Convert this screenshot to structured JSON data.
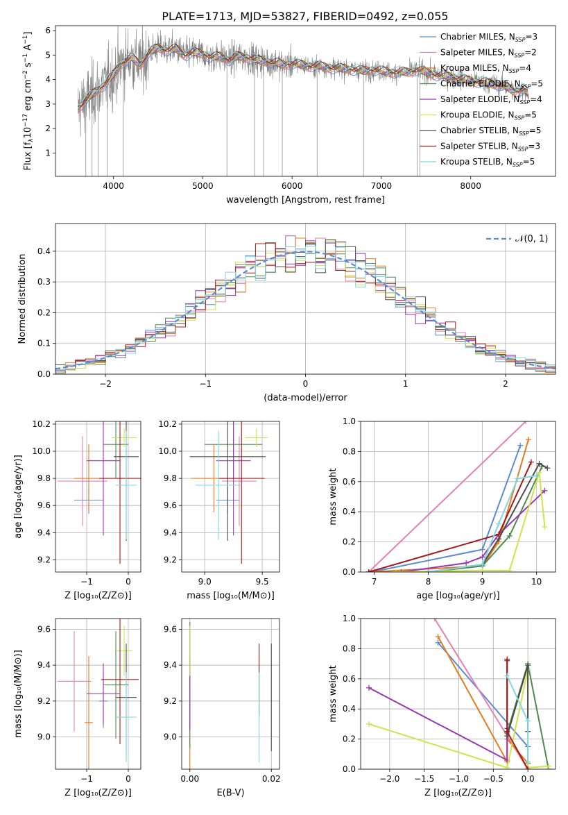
{
  "figure_title": "PLATE=1713, MJD=53827, FIBERID=0492, z=0.055",
  "colors": {
    "Chabrier MILES": "#5b8bd6",
    "Salpeter MILES": "#e57fb4",
    "Kroupa MILES": "#e57b1f",
    "Chabrier ELODIE": "#4e8a4c",
    "Salpeter ELODIE": "#9b35b5",
    "Kroupa ELODIE": "#cfe34a",
    "Chabrier STELIB": "#4a4a4a",
    "Salpeter STELIB": "#a31818",
    "Kroupa STELIB": "#7fd8de",
    "data": "#7f7f7f"
  },
  "chart_data": [
    {
      "id": "spectrum",
      "type": "line",
      "xlabel": "wavelength [Angstrom, rest frame]",
      "ylabel_prefix": "Flux [f",
      "ylabel_sub": "λ",
      "ylabel_mid": "10",
      "ylabel_exp1": "−17",
      "ylabel_mid2": " erg cm",
      "ylabel_exp2": "−2",
      "ylabel_mid3": " s",
      "ylabel_exp3": "−1",
      "ylabel_mid4": " A",
      "ylabel_exp4": "−1",
      "ylabel_end": "]",
      "xlim": [
        3350,
        8950
      ],
      "ylim": [
        0.05,
        6.2
      ],
      "xticks": [
        4000,
        5000,
        6000,
        7000,
        8000
      ],
      "yticks": [
        1,
        2,
        3,
        4,
        5,
        6
      ],
      "grid": false,
      "legend_position": "top-right",
      "continuum": [
        [
          3600,
          2.8
        ],
        [
          3700,
          3.2
        ],
        [
          3800,
          3.5
        ],
        [
          3900,
          3.8
        ],
        [
          4000,
          4.2
        ],
        [
          4100,
          4.7
        ],
        [
          4200,
          4.9
        ],
        [
          4300,
          4.6
        ],
        [
          4400,
          5.1
        ],
        [
          4500,
          5.3
        ],
        [
          4600,
          5.2
        ],
        [
          4700,
          5.25
        ],
        [
          4800,
          5.0
        ],
        [
          4900,
          5.1
        ],
        [
          5000,
          5.05
        ],
        [
          5100,
          4.9
        ],
        [
          5200,
          4.95
        ],
        [
          5300,
          4.8
        ],
        [
          5400,
          4.95
        ],
        [
          5500,
          4.9
        ],
        [
          5600,
          4.8
        ],
        [
          5700,
          4.75
        ],
        [
          5800,
          4.7
        ],
        [
          5900,
          4.6
        ],
        [
          6000,
          4.65
        ],
        [
          6100,
          4.6
        ],
        [
          6200,
          4.55
        ],
        [
          6300,
          4.55
        ],
        [
          6400,
          4.5
        ],
        [
          6500,
          4.45
        ],
        [
          6600,
          4.45
        ],
        [
          6700,
          4.4
        ],
        [
          6800,
          4.35
        ],
        [
          6900,
          4.4
        ],
        [
          7000,
          4.35
        ],
        [
          7100,
          4.3
        ],
        [
          7200,
          4.3
        ],
        [
          7300,
          4.3
        ],
        [
          7400,
          4.4
        ],
        [
          7500,
          4.3
        ],
        [
          7600,
          4.2
        ],
        [
          7700,
          4.15
        ],
        [
          7800,
          4.1
        ],
        [
          7900,
          4.0
        ],
        [
          8000,
          3.95
        ],
        [
          8100,
          3.9
        ],
        [
          8200,
          3.85
        ],
        [
          8300,
          3.8
        ],
        [
          8400,
          3.7
        ],
        [
          8500,
          3.5
        ],
        [
          8600,
          3.6
        ],
        [
          8650,
          3.4
        ]
      ],
      "legend": [
        {
          "model": "Chabrier MILES",
          "label": "Chabrier MILES, N",
          "sub": "SSP",
          "n": "=3"
        },
        {
          "model": "Salpeter MILES",
          "label": "Salpeter MILES, N",
          "sub": "SSP",
          "n": "=2"
        },
        {
          "model": "Kroupa MILES",
          "label": "Kroupa MILES, N",
          "sub": "SSP",
          "n": "=4"
        },
        {
          "model": "Chabrier ELODIE",
          "label": "Chabrier ELODIE, N",
          "sub": "SSP",
          "n": "=5"
        },
        {
          "model": "Salpeter ELODIE",
          "label": "Salpeter ELODIE, N",
          "sub": "SSP",
          "n": "=4"
        },
        {
          "model": "Kroupa ELODIE",
          "label": "Kroupa ELODIE, N",
          "sub": "SSP",
          "n": "=5"
        },
        {
          "model": "Chabrier STELIB",
          "label": "Chabrier STELIB, N",
          "sub": "SSP",
          "n": "=5"
        },
        {
          "model": "Salpeter STELIB",
          "label": "Salpeter STELIB, N",
          "sub": "SSP",
          "n": "=3"
        },
        {
          "model": "Kroupa STELIB",
          "label": "Kroupa STELIB, N",
          "sub": "SSP",
          "n": "=5"
        }
      ]
    },
    {
      "id": "residuals",
      "type": "line",
      "xlabel": "(data-model)/error",
      "ylabel": "Normed distribution",
      "xlim": [
        -2.5,
        2.5
      ],
      "ylim": [
        0,
        0.49
      ],
      "xticks": [
        -2,
        -1,
        0,
        1,
        2
      ],
      "yticks": [
        0.0,
        0.1,
        0.2,
        0.3,
        0.4
      ],
      "grid": true,
      "legend_position": "top-right",
      "legend": [
        {
          "label": "𝒩(0, 1)",
          "style": "dashed"
        }
      ],
      "bin_width": 0.1,
      "gaussian_color": "#5b8bd6"
    },
    {
      "id": "age-vs-Z",
      "type": "scatter",
      "xlabel": "Z [log₁₀(Z/Z⊙)]",
      "ylabel": "age  [log₁₀(age/yr)]",
      "xlim": [
        -1.75,
        0.3
      ],
      "ylim": [
        9.11,
        10.22
      ],
      "xticks": [
        -1,
        0
      ],
      "yticks": [
        9.2,
        9.4,
        9.6,
        9.8,
        10.0,
        10.2
      ],
      "grid": true,
      "points": [
        {
          "model": "Chabrier MILES",
          "x": -0.95,
          "xerr": 0.35,
          "y": 9.64,
          "yerr": 0.1
        },
        {
          "model": "Salpeter MILES",
          "x": -1.1,
          "xerr": 0.6,
          "y": 9.78,
          "yerr": 0.33
        },
        {
          "model": "Kroupa MILES",
          "x": -0.95,
          "xerr": 0.35,
          "y": 9.8,
          "yerr": 0.25
        },
        {
          "model": "Chabrier ELODIE",
          "x": -0.3,
          "xerr": 0.3,
          "y": 10.05,
          "yerr": 0.25
        },
        {
          "model": "Salpeter ELODIE",
          "x": -0.6,
          "xerr": 0.4,
          "y": 9.93,
          "yerr": 0.55
        },
        {
          "model": "Kroupa ELODIE",
          "x": -0.1,
          "xerr": 0.3,
          "y": 10.1,
          "yerr": 0.07
        },
        {
          "model": "Chabrier STELIB",
          "x": -0.05,
          "xerr": 0.3,
          "y": 9.96,
          "yerr": 0.62
        },
        {
          "model": "Salpeter STELIB",
          "x": -0.2,
          "xerr": 0.5,
          "y": 9.8,
          "yerr": 0.63
        },
        {
          "model": "Kroupa STELIB",
          "x": -0.05,
          "xerr": 0.25,
          "y": 9.75,
          "yerr": 0.4
        }
      ]
    },
    {
      "id": "age-vs-mass",
      "type": "scatter",
      "xlabel": "mass [log₁₀(M/M⊙)]",
      "xlim": [
        8.8,
        9.65
      ],
      "ylim": [
        9.11,
        10.22
      ],
      "xticks": [
        9.0,
        9.5
      ],
      "yticks": [
        9.2,
        9.4,
        9.6,
        9.8,
        10.0,
        10.2
      ],
      "grid": true,
      "points": [
        {
          "model": "Chabrier MILES",
          "x": 9.2,
          "xerr": 0.1,
          "y": 9.64,
          "yerr": 0.1
        },
        {
          "model": "Salpeter MILES",
          "x": 9.3,
          "xerr": 0.15,
          "y": 9.78,
          "yerr": 0.33
        },
        {
          "model": "Kroupa MILES",
          "x": 9.08,
          "xerr": 0.2,
          "y": 9.8,
          "yerr": 0.25
        },
        {
          "model": "Chabrier ELODIE",
          "x": 9.25,
          "xerr": 0.25,
          "y": 10.05,
          "yerr": 0.25
        },
        {
          "model": "Salpeter ELODIE",
          "x": 9.25,
          "xerr": 0.15,
          "y": 9.93,
          "yerr": 0.55
        },
        {
          "model": "Kroupa ELODIE",
          "x": 9.45,
          "xerr": 0.1,
          "y": 10.1,
          "yerr": 0.07
        },
        {
          "model": "Chabrier STELIB",
          "x": 9.2,
          "xerr": 0.33,
          "y": 9.96,
          "yerr": 0.62
        },
        {
          "model": "Salpeter STELIB",
          "x": 9.32,
          "xerr": 0.2,
          "y": 9.8,
          "yerr": 0.63
        },
        {
          "model": "Kroupa STELIB",
          "x": 9.12,
          "xerr": 0.2,
          "y": 9.75,
          "yerr": 0.4
        }
      ]
    },
    {
      "id": "mass-weight-vs-age",
      "type": "line",
      "xlabel": "age  [log₁₀(age/yr)]",
      "ylabel": "mass weight",
      "xlim": [
        6.75,
        10.35
      ],
      "ylim": [
        0,
        1.0
      ],
      "xticks": [
        7,
        8,
        9,
        10
      ],
      "yticks": [
        0.0,
        0.2,
        0.4,
        0.6,
        0.8,
        1.0
      ],
      "grid": true,
      "series": [
        {
          "model": "Chabrier MILES",
          "x": [
            6.95,
            9.0,
            9.7
          ],
          "y": [
            0.0,
            0.15,
            0.84
          ]
        },
        {
          "model": "Salpeter MILES",
          "x": [
            6.9,
            9.8
          ],
          "y": [
            0.0,
            1.0
          ]
        },
        {
          "model": "Kroupa MILES",
          "x": [
            6.9,
            9.0,
            9.3,
            9.85
          ],
          "y": [
            0.0,
            0.04,
            0.2,
            0.88
          ]
        },
        {
          "model": "Chabrier ELODIE",
          "x": [
            8.0,
            9.0,
            9.5,
            10.1
          ],
          "y": [
            0.0,
            0.04,
            0.24,
            0.7
          ]
        },
        {
          "model": "Salpeter ELODIE",
          "x": [
            7.5,
            8.7,
            9.0,
            9.3,
            10.15
          ],
          "y": [
            0.0,
            0.06,
            0.1,
            0.25,
            0.54
          ]
        },
        {
          "model": "Kroupa ELODIE",
          "x": [
            7.4,
            9.0,
            9.5,
            10.05,
            10.15
          ],
          "y": [
            0.0,
            0.01,
            0.01,
            0.66,
            0.3
          ]
        },
        {
          "model": "Chabrier STELIB",
          "x": [
            8.0,
            9.0,
            9.3,
            10.05,
            10.2
          ],
          "y": [
            0.0,
            0.05,
            0.22,
            0.72,
            0.69
          ]
        },
        {
          "model": "Salpeter STELIB",
          "x": [
            6.9,
            9.3,
            9.9
          ],
          "y": [
            0.0,
            0.25,
            0.73
          ]
        },
        {
          "model": "Kroupa STELIB",
          "x": [
            8.0,
            9.0,
            9.3,
            9.65,
            10.0
          ],
          "y": [
            0.0,
            0.05,
            0.32,
            0.62,
            0.64
          ]
        }
      ]
    },
    {
      "id": "mass-vs-Z",
      "type": "scatter",
      "xlabel": "Z [log₁₀(Z/Z⊙)]",
      "ylabel": "mass [log₁₀(M/M⊙)]",
      "xlim": [
        -1.75,
        0.3
      ],
      "ylim": [
        8.82,
        9.66
      ],
      "xticks": [
        -1,
        0
      ],
      "yticks": [
        9.0,
        9.2,
        9.4,
        9.6
      ],
      "grid": true,
      "points": [
        {
          "model": "Chabrier MILES",
          "x": -0.6,
          "xerr": 0.1,
          "y": 9.2,
          "yerr": 0.15
        },
        {
          "model": "Salpeter MILES",
          "x": -1.3,
          "xerr": 0.4,
          "y": 9.31,
          "yerr": 0.28
        },
        {
          "model": "Kroupa MILES",
          "x": -0.95,
          "xerr": 0.1,
          "y": 9.08,
          "yerr": 0.37
        },
        {
          "model": "Chabrier ELODIE",
          "x": -0.3,
          "xerr": 0.3,
          "y": 9.29,
          "yerr": 0.3
        },
        {
          "model": "Salpeter ELODIE",
          "x": -0.6,
          "xerr": 0.4,
          "y": 9.24,
          "yerr": 0.17
        },
        {
          "model": "Kroupa ELODIE",
          "x": -0.1,
          "xerr": 0.2,
          "y": 9.48,
          "yerr": 0.14
        },
        {
          "model": "Chabrier STELIB",
          "x": -0.05,
          "xerr": 0.25,
          "y": 9.22,
          "yerr": 0.3
        },
        {
          "model": "Salpeter STELIB",
          "x": -0.2,
          "xerr": 0.45,
          "y": 9.32,
          "yerr": 0.36
        },
        {
          "model": "Kroupa STELIB",
          "x": -0.05,
          "xerr": 0.25,
          "y": 9.11,
          "yerr": 0.25
        }
      ]
    },
    {
      "id": "mass-vs-EBV",
      "type": "scatter",
      "xlabel": "E(B-V)",
      "xlim": [
        -0.002,
        0.022
      ],
      "ylim": [
        8.82,
        9.66
      ],
      "xticks": [
        0.0,
        0.02
      ],
      "xticklabels": [
        "0.00",
        "0.02"
      ],
      "yticks": [
        9.0,
        9.2,
        9.4,
        9.6
      ],
      "grid": true,
      "points": [
        {
          "model": "Chabrier MILES",
          "x": 0.0,
          "xerr": 0,
          "y": 9.2,
          "yerr": 0.15
        },
        {
          "model": "Salpeter MILES",
          "x": 0.0,
          "xerr": 0,
          "y": 9.31,
          "yerr": 0.28
        },
        {
          "model": "Kroupa MILES",
          "x": 0.0,
          "xerr": 0,
          "y": 9.08,
          "yerr": 0.37
        },
        {
          "model": "Chabrier ELODIE",
          "x": 0.0,
          "xerr": 0,
          "y": 9.29,
          "yerr": 0.35
        },
        {
          "model": "Salpeter ELODIE",
          "x": 0.0,
          "xerr": 0,
          "y": 9.24,
          "yerr": 0.2
        },
        {
          "model": "Kroupa ELODIE",
          "x": 0.0,
          "xerr": 0,
          "y": 9.48,
          "yerr": 0.14
        },
        {
          "model": "Chabrier STELIB",
          "x": 0.02,
          "xerr": 0,
          "y": 9.22,
          "yerr": 0.3
        },
        {
          "model": "Salpeter STELIB",
          "x": 0.017,
          "xerr": 0,
          "y": 9.32,
          "yerr": 0.2
        },
        {
          "model": "Kroupa STELIB",
          "x": 0.017,
          "xerr": 0,
          "y": 9.11,
          "yerr": 0.25
        }
      ]
    },
    {
      "id": "mass-weight-vs-Z",
      "type": "line",
      "xlabel": "Z [log₁₀(Z/Z⊙)]",
      "ylabel": "mass weight",
      "xlim": [
        -2.42,
        0.4
      ],
      "ylim": [
        0,
        1.0
      ],
      "xticks": [
        -2.0,
        -1.5,
        -1.0,
        -0.5,
        0.0
      ],
      "yticks": [
        0.0,
        0.2,
        0.4,
        0.6,
        0.8,
        1.0
      ],
      "grid": true,
      "series": [
        {
          "model": "Chabrier MILES",
          "x": [
            -1.3,
            0.0,
            0.0
          ],
          "y": [
            0.84,
            0.15,
            0.01
          ]
        },
        {
          "model": "Salpeter MILES",
          "x": [
            -1.35,
            0.0
          ],
          "y": [
            1.0,
            0.0
          ]
        },
        {
          "model": "Kroupa MILES",
          "x": [
            -1.3,
            -0.3,
            -0.3,
            0.0
          ],
          "y": [
            0.88,
            0.05,
            0.2,
            0.04
          ]
        },
        {
          "model": "Chabrier ELODIE",
          "x": [
            -0.3,
            0.0,
            0.3
          ],
          "y": [
            0.24,
            0.7,
            0.0
          ]
        },
        {
          "model": "Salpeter ELODIE",
          "x": [
            -2.3,
            -0.3,
            -0.3
          ],
          "y": [
            0.54,
            0.06,
            0.27
          ]
        },
        {
          "model": "Kroupa ELODIE",
          "x": [
            -2.3,
            -0.3,
            0.0,
            0.0,
            0.3
          ],
          "y": [
            0.3,
            0.01,
            0.66,
            0.01,
            0.02
          ]
        },
        {
          "model": "Chabrier STELIB",
          "x": [
            -0.3,
            -0.3,
            0.0,
            0.0
          ],
          "y": [
            0.72,
            0.22,
            0.69,
            0.25
          ]
        },
        {
          "model": "Salpeter STELIB",
          "x": [
            -0.3,
            -0.3,
            0.0
          ],
          "y": [
            0.73,
            0.25,
            0.0
          ]
        },
        {
          "model": "Kroupa STELIB",
          "x": [
            -0.3,
            0.0,
            0.0
          ],
          "y": [
            0.62,
            0.32,
            0.05
          ]
        }
      ]
    }
  ]
}
